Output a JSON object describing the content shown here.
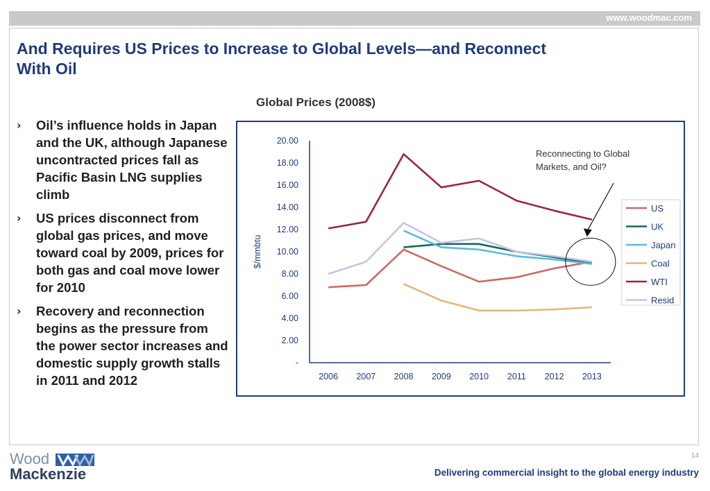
{
  "header": {
    "url": "www.woodmac.com"
  },
  "slide": {
    "title": "And Requires US Prices to Increase to Global Levels—and Reconnect With Oil",
    "bullet_marker": "›",
    "bullets": [
      "Oil’s influence holds in Japan and the UK, although Japanese uncontracted prices fall as Pacific Basin LNG supplies climb",
      "US prices disconnect from global gas prices, and move toward coal by 2009, prices for both gas and coal move lower for 2010",
      "Recovery and reconnection begins as the pressure from the power sector increases and domestic supply growth stalls in 2011 and 2012"
    ]
  },
  "chart_data": {
    "type": "line",
    "title": "Global Prices (2008$)",
    "xlabel": "",
    "ylabel": "$/mmbtu",
    "x": [
      "2006",
      "2007",
      "2008",
      "2009",
      "2010",
      "2011",
      "2012",
      "2013"
    ],
    "y_ticks": [
      "-",
      "2.00",
      "4.00",
      "6.00",
      "8.00",
      "10.00",
      "12.00",
      "14.00",
      "16.00",
      "18.00",
      "20.00"
    ],
    "ylim": [
      0,
      20
    ],
    "grid": false,
    "legend_position": "right",
    "annotation": "Reconnecting to Global Markets, and Oil?",
    "series": [
      {
        "name": "US",
        "color": "#c96b63",
        "values": [
          6.8,
          7.0,
          10.2,
          8.7,
          7.3,
          7.7,
          8.5,
          9.1
        ]
      },
      {
        "name": "UK",
        "color": "#17665f",
        "values": [
          null,
          null,
          10.4,
          10.7,
          10.7,
          10.0,
          9.5,
          9.0
        ]
      },
      {
        "name": "Japan",
        "color": "#5cb8df",
        "values": [
          null,
          null,
          11.9,
          10.4,
          10.2,
          9.6,
          9.3,
          8.9
        ]
      },
      {
        "name": "Coal",
        "color": "#e3b77a",
        "values": [
          null,
          null,
          7.1,
          5.6,
          4.7,
          4.7,
          4.8,
          5.0
        ]
      },
      {
        "name": "WTI",
        "color": "#9a2440",
        "values": [
          12.1,
          12.7,
          18.8,
          15.8,
          16.4,
          14.6,
          13.7,
          12.9
        ]
      },
      {
        "name": "Resid",
        "color": "#c6c3e2",
        "values": [
          8.0,
          9.1,
          12.6,
          10.8,
          11.2,
          10.0,
          9.6,
          9.1
        ]
      }
    ]
  },
  "footer": {
    "logo_line1": "Wood",
    "logo_line2": "Mackenzie",
    "page_number": "14",
    "tagline": "Delivering commercial insight to the global energy industry"
  }
}
